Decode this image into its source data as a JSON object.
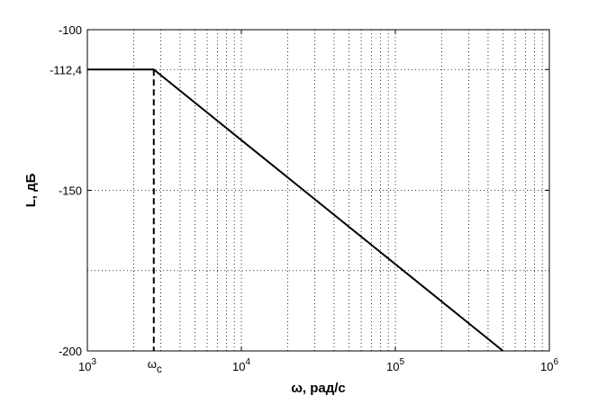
{
  "chart_data": {
    "type": "line",
    "title": "",
    "xlabel": "ω, рад/с",
    "ylabel": "L, дБ",
    "xscale": "log",
    "xlim": [
      1000,
      1000000
    ],
    "ylim": [
      -200,
      -100
    ],
    "grid": true,
    "grid_style": "dotted",
    "x_ticks": [
      {
        "base": "10",
        "exp": "3"
      },
      {
        "base": "10",
        "exp": "4"
      },
      {
        "base": "10",
        "exp": "5"
      },
      {
        "base": "10",
        "exp": "6"
      }
    ],
    "y_ticks": [
      "-100",
      "-112,4",
      "-150",
      "-200"
    ],
    "y_tick_values": [
      -100,
      -112.4,
      -150,
      -200
    ],
    "y_grid_values": [
      -100,
      -112.4,
      -150,
      -175,
      -200
    ],
    "series": [
      {
        "x": [
          1000,
          2700,
          500000
        ],
        "y": [
          -112.4,
          -112.4,
          -200
        ]
      }
    ],
    "annotations": [
      {
        "label_main": "ω",
        "label_sub": "c",
        "x": 2700,
        "y_from": -200,
        "y_to": -112.4,
        "style": "dashed"
      }
    ],
    "colors": {
      "line": "#000000",
      "grid": "#000000"
    }
  }
}
